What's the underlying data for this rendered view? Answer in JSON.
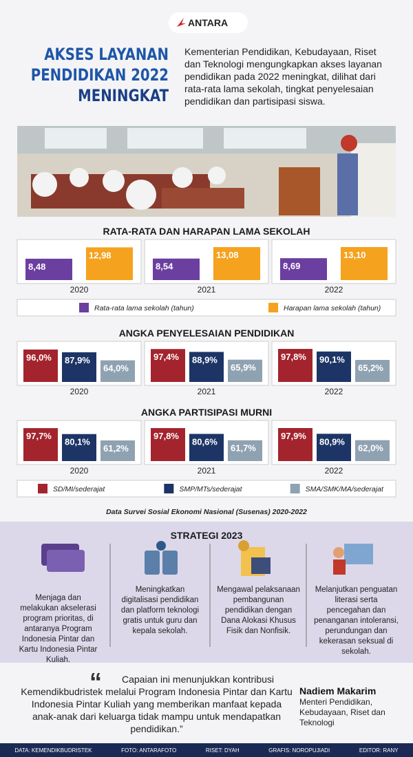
{
  "header": {
    "logo": "ANTARA",
    "title": [
      "AKSES LAYANAN",
      "PENDIDIKAN 2022",
      "MENINGKAT"
    ],
    "intro": "Kementerian Pendidikan, Kebudayaan, Riset dan Teknologi mengungkapkan akses layanan pendidikan pada 2022 meningkat, dilihat dari rata-rata lama sekolah, tingkat penyelesaian pendidikan dan partisipasi siswa."
  },
  "chart_data": [
    {
      "type": "bar",
      "title": "RATA-RATA DAN HARAPAN LAMA SEKOLAH",
      "categories": [
        "2020",
        "2021",
        "2022"
      ],
      "series": [
        {
          "name": "Rata-rata lama sekolah (tahun)",
          "color": "#6b3fa0",
          "values": [
            8.48,
            8.54,
            8.69
          ],
          "value_labels": [
            "8,48",
            "8,54",
            "8,69"
          ]
        },
        {
          "name": "Harapan lama sekolah (tahun)",
          "color": "#f5a21e",
          "values": [
            12.98,
            13.08,
            13.1
          ],
          "value_labels": [
            "12,98",
            "13,08",
            "13,10"
          ]
        }
      ]
    },
    {
      "type": "bar",
      "title": "ANGKA PENYELESAIAN PENDIDIKAN",
      "categories": [
        "2020",
        "2021",
        "2022"
      ],
      "series": [
        {
          "color": "#a3242d",
          "values": [
            96.0,
            97.4,
            97.8
          ],
          "value_labels": [
            "96,0%",
            "97,4%",
            "97,8%"
          ]
        },
        {
          "color": "#1d3566",
          "values": [
            87.9,
            88.9,
            90.1
          ],
          "value_labels": [
            "87,9%",
            "88,9%",
            "90,1%"
          ]
        },
        {
          "color": "#8fa2b2",
          "values": [
            64.0,
            65.9,
            65.2
          ],
          "value_labels": [
            "64,0%",
            "65,9%",
            "65,2%"
          ]
        }
      ]
    },
    {
      "type": "bar",
      "title": "ANGKA PARTISIPASI MURNI",
      "categories": [
        "2020",
        "2021",
        "2022"
      ],
      "series": [
        {
          "name": "SD/MI/sederajat",
          "color": "#a3242d",
          "values": [
            97.7,
            97.8,
            97.9
          ],
          "value_labels": [
            "97,7%",
            "97,8%",
            "97,9%"
          ]
        },
        {
          "name": "SMP/MTs/sederajat",
          "color": "#1d3566",
          "values": [
            80.1,
            80.6,
            80.9
          ],
          "value_labels": [
            "80,1%",
            "80,6%",
            "80,9%"
          ]
        },
        {
          "name": "SMA/SMK/MA/sederajat",
          "color": "#8fa2b2",
          "values": [
            61.2,
            61.7,
            62.0
          ],
          "value_labels": [
            "61,2%",
            "61,7%",
            "62,0%"
          ]
        }
      ]
    }
  ],
  "source": "Data Survei Sosial Ekonomi Nasional (Susenas) 2020-2022",
  "strategy": {
    "title": "STRATEGI 2023",
    "items": [
      "Menjaga dan melakukan akselerasi program prioritas, di antaranya Program Indonesia Pintar dan Kartu Indonesia Pintar Kuliah.",
      "Meningkatkan digitalisasi pendidikan dan platform teknologi gratis untuk guru dan kepala sekolah.",
      "Mengawal pelaksanaan pembangunan pendidikan dengan Dana Alokasi Khusus Fisik dan Nonfisik.",
      "Melanjutkan penguatan literasi serta pencegahan dan penanganan intoleransi, perundungan dan kekerasan seksual di sekolah."
    ]
  },
  "quote": {
    "text": "Capaian ini menunjukkan kontribusi Kemendikbudristek melalui Program Indonesia Pintar dan Kartu Indonesia Pintar Kuliah yang memberikan manfaat kepada anak-anak dari keluarga tidak mampu untuk mendapatkan pendidikan.”",
    "name": "Nadiem Makarim",
    "role": "Menteri Pendidikan, Kebudayaan, Riset dan Teknologi"
  },
  "footer": [
    "DATA: KEMENDIKBUDRISTEK",
    "FOTO: ANTARAFOTO",
    "RISET: DYAH",
    "GRAFIS: NOROPUJIADI",
    "EDITOR: RANY"
  ]
}
